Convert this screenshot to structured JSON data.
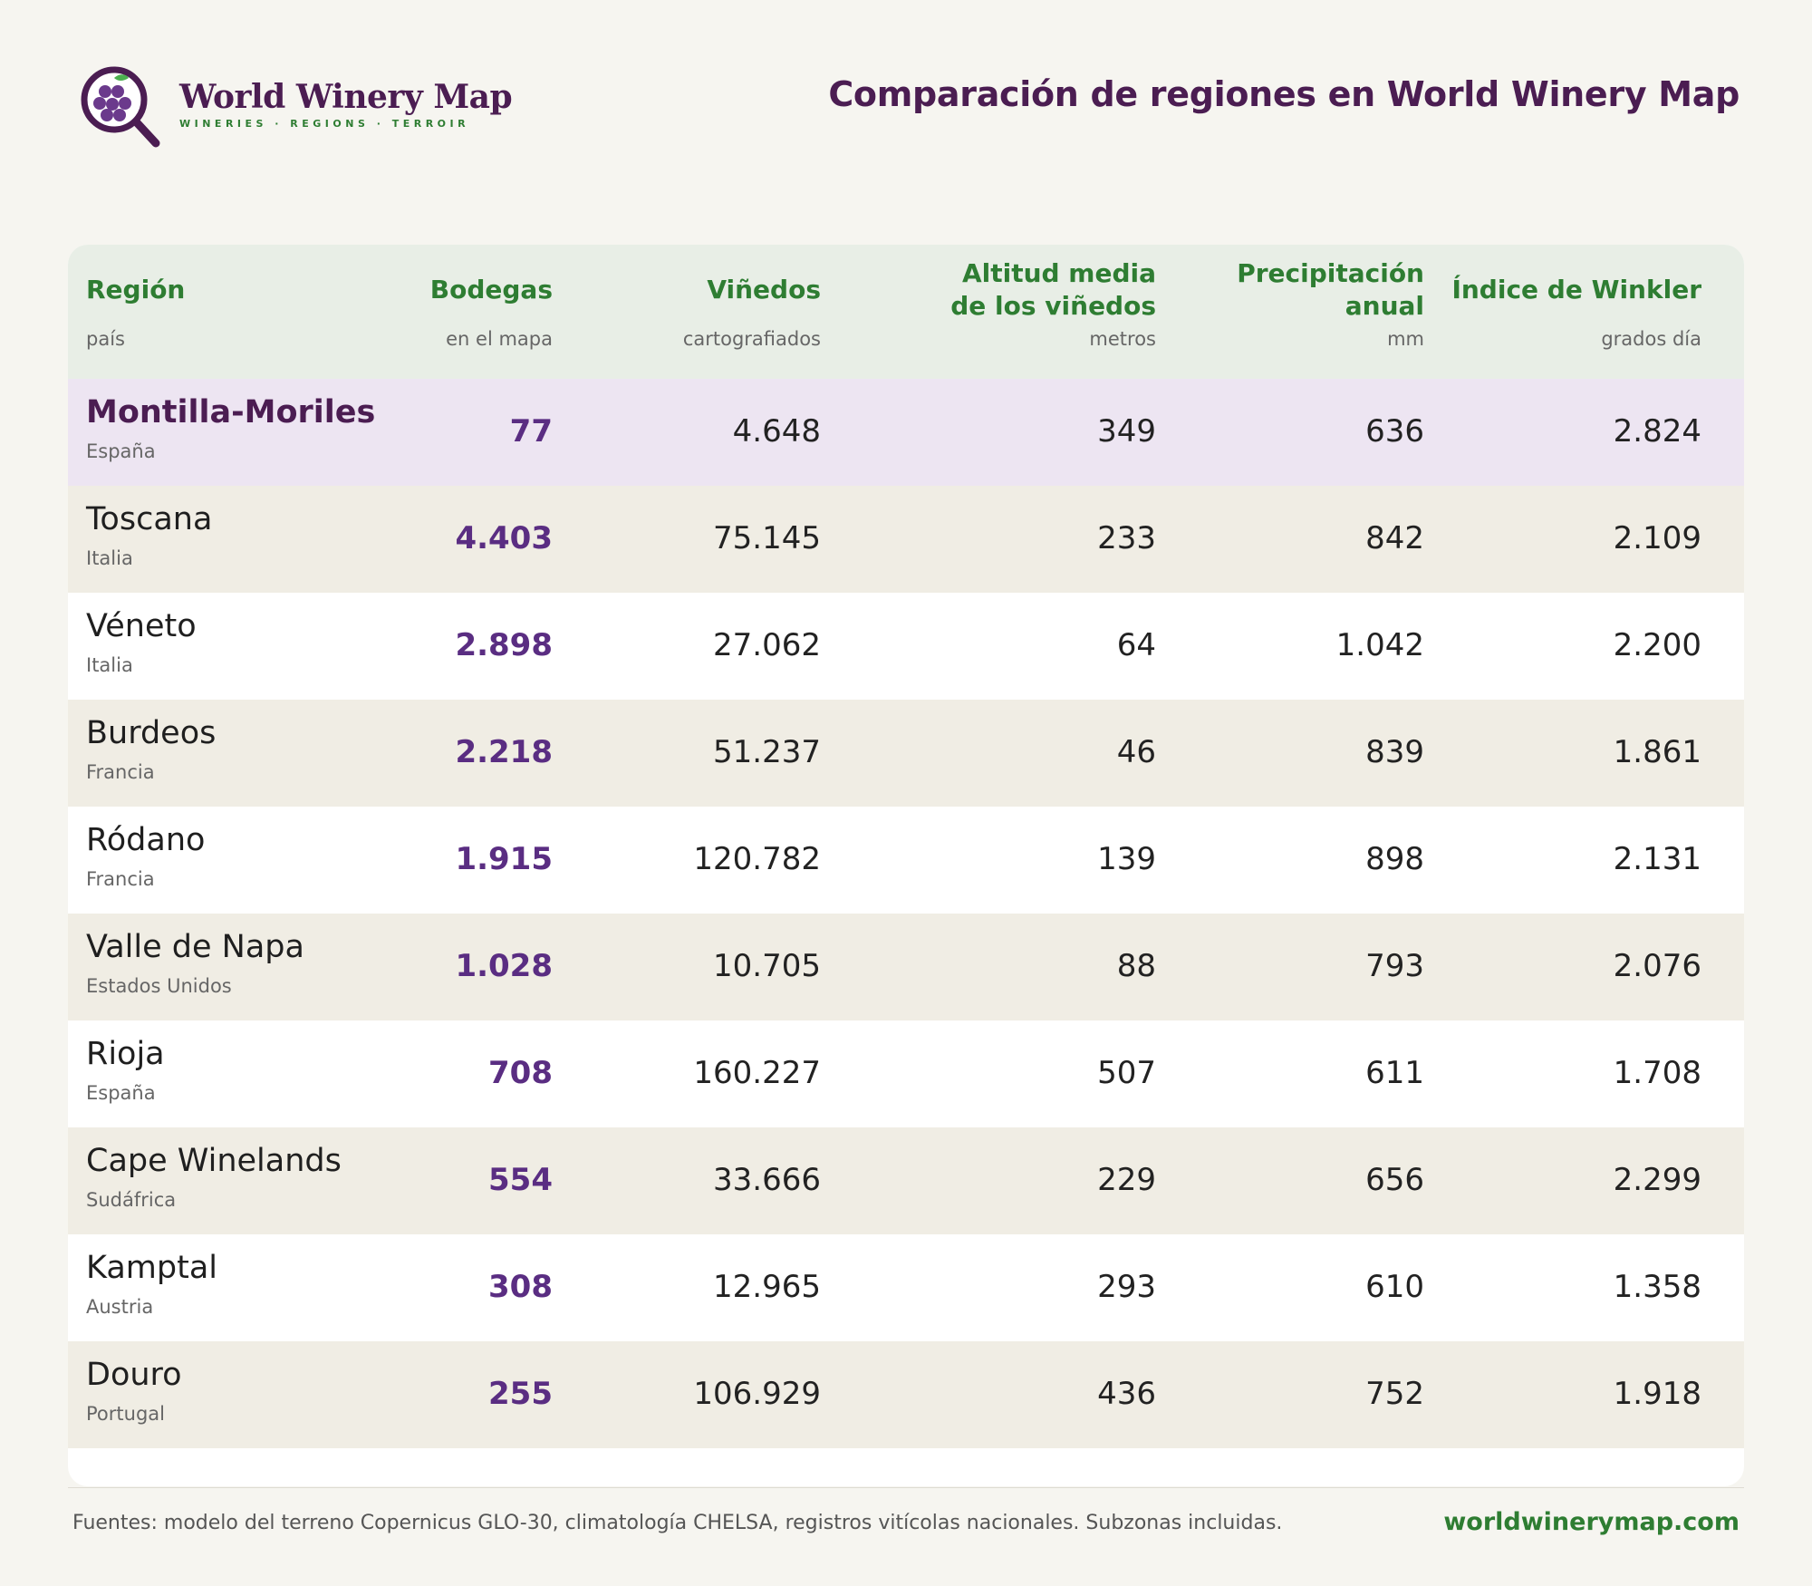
{
  "brand": {
    "name": "World Winery Map",
    "tagline": "WINERIES · REGIONS · TERROIR"
  },
  "title": "Comparación de regiones en World Winery Map",
  "table": {
    "columns": [
      {
        "title": "Región",
        "sub": "país"
      },
      {
        "title": "Bodegas",
        "sub": "en el mapa"
      },
      {
        "title": "Viñedos",
        "sub": "cartografiados"
      },
      {
        "title": "Altitud media\nde los viñedos",
        "sub": "metros"
      },
      {
        "title": "Precipitación\nanual",
        "sub": "mm"
      },
      {
        "title": "Índice de Winkler",
        "sub": "grados día"
      }
    ],
    "rows": [
      {
        "region": "Montilla-Moriles",
        "country": "España",
        "bodegas": "77",
        "vinedos": "4.648",
        "altitud": "349",
        "precip": "636",
        "winkler": "2.824",
        "highlight": true
      },
      {
        "region": "Toscana",
        "country": "Italia",
        "bodegas": "4.403",
        "vinedos": "75.145",
        "altitud": "233",
        "precip": "842",
        "winkler": "2.109"
      },
      {
        "region": "Véneto",
        "country": "Italia",
        "bodegas": "2.898",
        "vinedos": "27.062",
        "altitud": "64",
        "precip": "1.042",
        "winkler": "2.200"
      },
      {
        "region": "Burdeos",
        "country": "Francia",
        "bodegas": "2.218",
        "vinedos": "51.237",
        "altitud": "46",
        "precip": "839",
        "winkler": "1.861"
      },
      {
        "region": "Ródano",
        "country": "Francia",
        "bodegas": "1.915",
        "vinedos": "120.782",
        "altitud": "139",
        "precip": "898",
        "winkler": "2.131"
      },
      {
        "region": "Valle de Napa",
        "country": "Estados Unidos",
        "bodegas": "1.028",
        "vinedos": "10.705",
        "altitud": "88",
        "precip": "793",
        "winkler": "2.076"
      },
      {
        "region": "Rioja",
        "country": "España",
        "bodegas": "708",
        "vinedos": "160.227",
        "altitud": "507",
        "precip": "611",
        "winkler": "1.708"
      },
      {
        "region": "Cape Winelands",
        "country": "Sudáfrica",
        "bodegas": "554",
        "vinedos": "33.666",
        "altitud": "229",
        "precip": "656",
        "winkler": "2.299"
      },
      {
        "region": "Kamptal",
        "country": "Austria",
        "bodegas": "308",
        "vinedos": "12.965",
        "altitud": "293",
        "precip": "610",
        "winkler": "1.358"
      },
      {
        "region": "Douro",
        "country": "Portugal",
        "bodegas": "255",
        "vinedos": "106.929",
        "altitud": "436",
        "precip": "752",
        "winkler": "1.918"
      }
    ]
  },
  "footer": {
    "sources": "Fuentes: modelo del terreno Copernicus GLO-30, climatología CHELSA, registros vitícolas nacionales. Subzonas incluidas.",
    "url": "worldwinerymap.com"
  },
  "colors": {
    "brand_purple": "#4b1d52",
    "accent_green": "#2e7d32",
    "bodegas_purple": "#5a2d82",
    "highlight_row": "#ede5f2"
  },
  "icons": {
    "logo": "magnifier-grape-icon"
  }
}
